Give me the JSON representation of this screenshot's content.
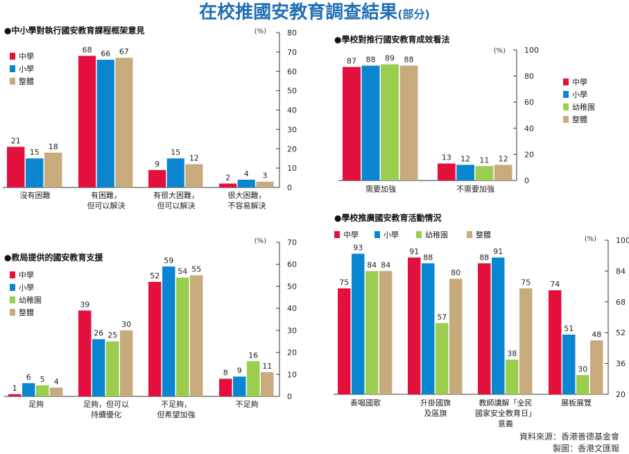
{
  "header": {
    "title": "在校推國安教育調查結果",
    "subtitle": "(部分)"
  },
  "colors": {
    "中學": "#e30f3d",
    "小學": "#0a86d0",
    "幼稚園": "#9bcd4f",
    "整體": "#c8ab7d",
    "axis": "#333333",
    "text": "#222222"
  },
  "chart_data": [
    {
      "type": "bar",
      "title": "●中小學對執行國安教育課程框架意見",
      "unit_label": "(%)",
      "categories": [
        "沒有困難",
        "有困難，\n但可以解決",
        "有很大困難，\n但可以解決",
        "很大困難，\n不容易解決"
      ],
      "series": [
        {
          "name": "中學",
          "values": [
            21,
            68,
            9,
            2
          ]
        },
        {
          "name": "小學",
          "values": [
            15,
            66,
            15,
            4
          ]
        },
        {
          "name": "整體",
          "values": [
            18,
            67,
            12,
            3
          ]
        }
      ],
      "ylim": [
        0,
        80
      ],
      "yticks": [
        0,
        10,
        20,
        30,
        40,
        50,
        60,
        70,
        80
      ],
      "axis_side": "right",
      "legend": "top-left",
      "grid": false
    },
    {
      "type": "bar",
      "title": "●學校對推行國安教育成效看法",
      "unit_label": "(%)",
      "categories": [
        "需要加強",
        "不需要加強"
      ],
      "series": [
        {
          "name": "中學",
          "values": [
            87,
            13
          ]
        },
        {
          "name": "小學",
          "values": [
            88,
            12
          ]
        },
        {
          "name": "幼稚園",
          "values": [
            89,
            11
          ]
        },
        {
          "name": "整體",
          "values": [
            88,
            12
          ]
        }
      ],
      "ylim": [
        0,
        100
      ],
      "yticks": [
        0,
        20,
        40,
        60,
        80,
        100
      ],
      "axis_side": "right",
      "legend": "right",
      "grid": false
    },
    {
      "type": "bar",
      "title": "●教局提供的國安教育支援",
      "unit_label": "(%)",
      "categories": [
        "足夠",
        "足夠，但可以\n持續優化",
        "不足夠，\n但希望加強",
        "不足夠"
      ],
      "series": [
        {
          "name": "中學",
          "values": [
            1,
            39,
            52,
            8
          ]
        },
        {
          "name": "小學",
          "values": [
            6,
            26,
            59,
            9
          ]
        },
        {
          "name": "幼稚園",
          "values": [
            5,
            25,
            54,
            16
          ]
        },
        {
          "name": "整體",
          "values": [
            4,
            30,
            55,
            11
          ]
        }
      ],
      "ylim": [
        0,
        70
      ],
      "yticks": [
        0,
        10,
        20,
        30,
        40,
        50,
        60,
        70
      ],
      "axis_side": "right",
      "legend": "top-left",
      "grid": false
    },
    {
      "type": "bar",
      "title": "●學校推廣國安教育活動情況",
      "unit_label": "(%)",
      "categories": [
        "奏唱國歌",
        "升掛國旗\n及區旗",
        "教師講解「全民\n國家安全教育日」\n意義",
        "展板展覽"
      ],
      "series": [
        {
          "name": "中學",
          "values": [
            75,
            91,
            88,
            74
          ]
        },
        {
          "name": "小學",
          "values": [
            93,
            88,
            91,
            51
          ]
        },
        {
          "name": "幼稚園",
          "values": [
            84,
            57,
            38,
            30
          ]
        },
        {
          "name": "整體",
          "values": [
            84,
            80,
            75,
            48
          ]
        }
      ],
      "ylim": [
        20,
        100
      ],
      "yticks": [
        20,
        36,
        52,
        68,
        84,
        100
      ],
      "axis_side": "right",
      "legend": "top",
      "grid": false
    }
  ],
  "footer": {
    "source": "資料來源：香港善德基金會",
    "credit": "製圖：香港文匯報"
  }
}
